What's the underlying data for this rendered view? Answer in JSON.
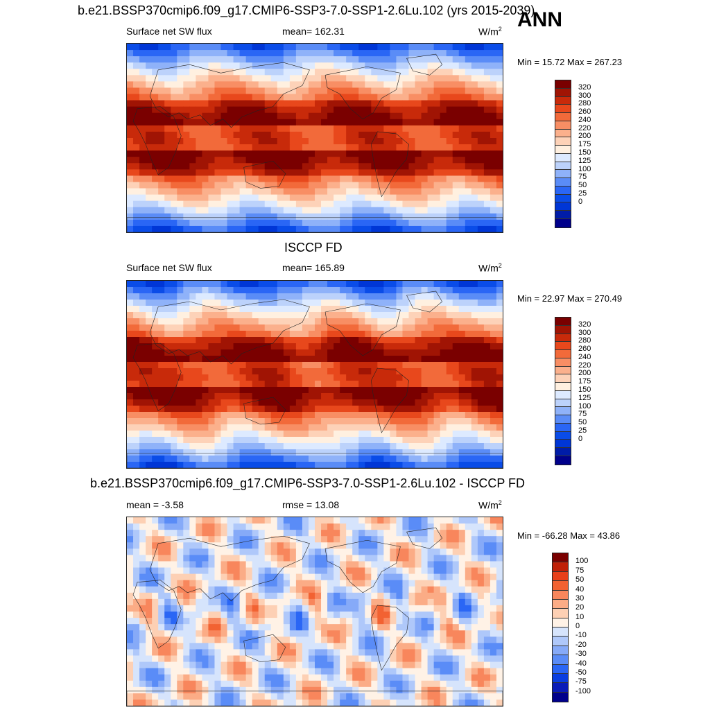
{
  "season": "ANN",
  "colors": {
    "abs": [
      "#00008b",
      "#001ca8",
      "#0036d6",
      "#0a4ce8",
      "#2a66f5",
      "#5a8cf7",
      "#8fb2f9",
      "#bcd2fb",
      "#ddeaff",
      "#fff0e0",
      "#fdd2b8",
      "#fbb08c",
      "#f88e64",
      "#f26a3a",
      "#e8481c",
      "#c82a0a",
      "#a01404",
      "#7a0000"
    ],
    "diff": [
      "#00008b",
      "#0a1cb8",
      "#0a3ee0",
      "#2a66f5",
      "#5a8cf7",
      "#86aaf8",
      "#afc8fa",
      "#d6e4fc",
      "#fff2e6",
      "#fdd0b4",
      "#fbac86",
      "#f8865c",
      "#f26232",
      "#e8401a",
      "#c02008",
      "#7a0000"
    ]
  },
  "panels": [
    {
      "title": "b.e21.BSSP370cmip6.f09_g17.CMIP6-SSP3-7.0-SSP1-2.6Lu.102 (yrs 2015-2039)",
      "left": "Surface net SW flux",
      "center": "mean= 162.31",
      "units_base": "W/m",
      "units_exp": "2",
      "minmax": "Min =  15.72 Max = 267.23",
      "levels": [
        "320",
        "300",
        "280",
        "260",
        "240",
        "220",
        "200",
        "175",
        "150",
        "125",
        "100",
        "75",
        "50",
        "25",
        "0"
      ]
    },
    {
      "title": "ISCCP FD",
      "left": "Surface net SW flux",
      "center": "mean= 165.89",
      "units_base": "W/m",
      "units_exp": "2",
      "minmax": "Min =  22.97 Max = 270.49",
      "levels": [
        "320",
        "300",
        "280",
        "260",
        "240",
        "220",
        "200",
        "175",
        "150",
        "125",
        "100",
        "75",
        "50",
        "25",
        "0"
      ]
    },
    {
      "title": "b.e21.BSSP370cmip6.f09_g17.CMIP6-SSP3-7.0-SSP1-2.6Lu.102 - ISCCP FD",
      "left": "mean =  -3.58",
      "center": "rmse =  13.08",
      "units_base": "W/m",
      "units_exp": "2",
      "minmax": "Min = -66.28 Max =  43.86",
      "levels": [
        "100",
        "75",
        "50",
        "40",
        "30",
        "20",
        "10",
        "0",
        "-10",
        "-20",
        "-30",
        "-40",
        "-50",
        "-75",
        "-100"
      ]
    }
  ],
  "chart_data": [
    {
      "type": "heatmap",
      "title": "b.e21.BSSP370cmip6.f09_g17.CMIP6-SSP3-7.0-SSP1-2.6Lu.102 (yrs 2015-2039)",
      "subtitle": "Surface net SW flux",
      "units": "W/m2",
      "mean": 162.31,
      "min": 15.72,
      "max": 267.23,
      "colorbar_levels": [
        0,
        25,
        50,
        75,
        100,
        125,
        150,
        175,
        200,
        220,
        240,
        260,
        280,
        300,
        320
      ]
    },
    {
      "type": "heatmap",
      "title": "ISCCP FD",
      "subtitle": "Surface net SW flux",
      "units": "W/m2",
      "mean": 165.89,
      "min": 22.97,
      "max": 270.49,
      "colorbar_levels": [
        0,
        25,
        50,
        75,
        100,
        125,
        150,
        175,
        200,
        220,
        240,
        260,
        280,
        300,
        320
      ]
    },
    {
      "type": "heatmap",
      "title": "b.e21.BSSP370cmip6.f09_g17.CMIP6-SSP3-7.0-SSP1-2.6Lu.102 - ISCCP FD",
      "units": "W/m2",
      "mean": -3.58,
      "rmse": 13.08,
      "min": -66.28,
      "max": 43.86,
      "colorbar_levels": [
        -100,
        -75,
        -50,
        -40,
        -30,
        -20,
        -10,
        0,
        10,
        20,
        30,
        40,
        50,
        75,
        100
      ]
    }
  ]
}
